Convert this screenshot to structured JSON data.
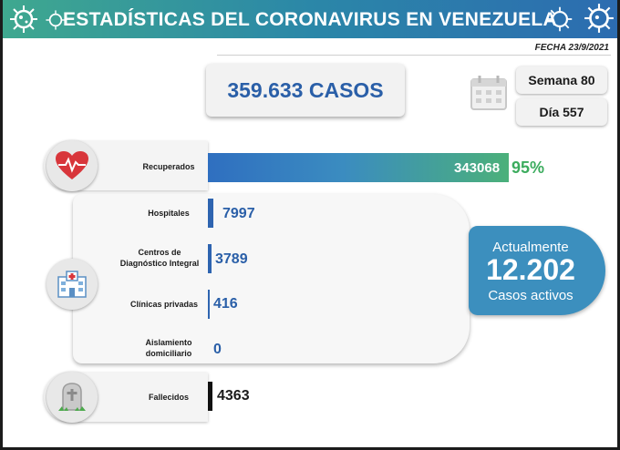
{
  "header": {
    "title": "ESTADÍSTICAS DEL CORONAVIRUS EN VENEZUELA",
    "fecha": "FECHA 23/9/2021"
  },
  "summary": {
    "total_cases": "359.633 CASOS",
    "week": "Semana 80",
    "day": "Día 557"
  },
  "rows": {
    "recuperados": {
      "label": "Recuperados",
      "value": "343068",
      "percent": "95%"
    },
    "hospitales": {
      "label": "Hospitales",
      "value": "7997"
    },
    "cdi": {
      "label_line1": "Centros de",
      "label_line2": "Diagnóstico Integral",
      "value": "3789"
    },
    "clinicas": {
      "label": "Clínicas privadas",
      "value": "416"
    },
    "aislamiento": {
      "label_line1": "Aislamiento",
      "label_line2": "domiciliario",
      "value": "0"
    },
    "fallecidos": {
      "label": "Fallecidos",
      "value": "4363"
    }
  },
  "active": {
    "title": "Actualmente",
    "number": "12.202",
    "subtitle": "Casos activos"
  },
  "icons": {
    "virus": "virus-icon",
    "calendar": "calendar-icon",
    "heart": "heart-pulse-icon",
    "hospital": "hospital-icon",
    "tombstone": "tombstone-icon"
  },
  "colors": {
    "header_start": "#3fa88f",
    "header_end": "#2c6cb0",
    "primary_blue": "#2a5fa8",
    "recovered_green": "#3cac5e",
    "active_box": "#3c8fbe"
  }
}
